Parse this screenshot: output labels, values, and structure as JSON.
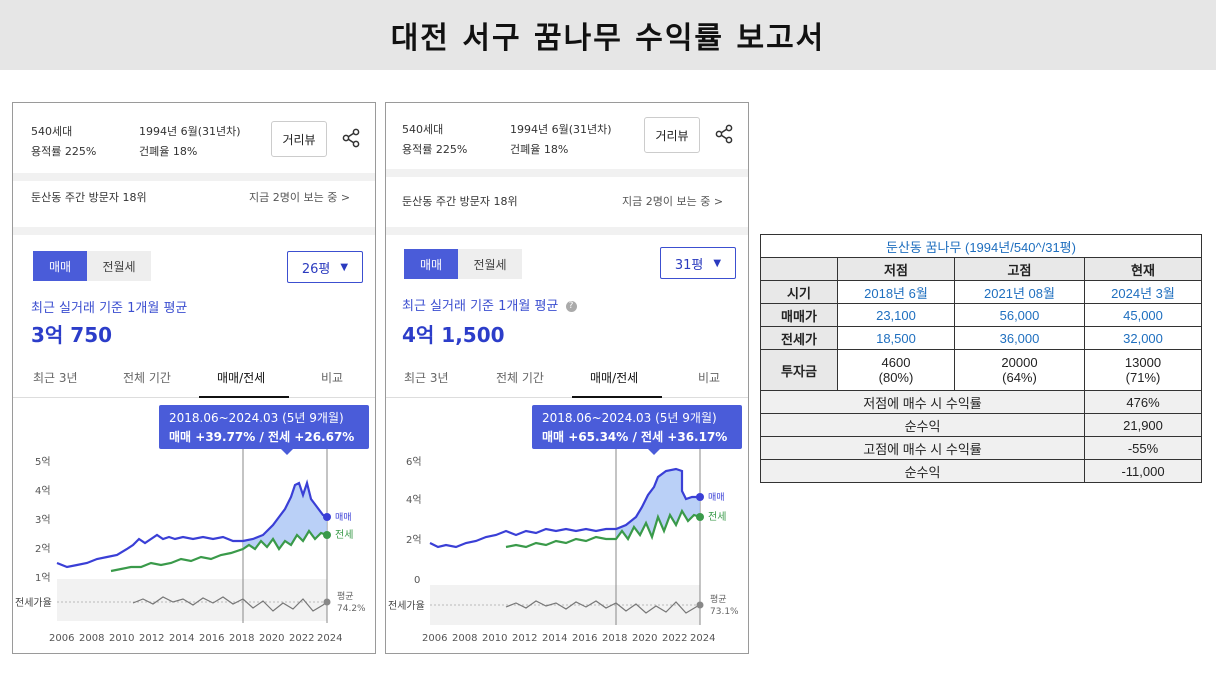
{
  "report_title": "대전 서구 꿈나무 수익률 보고서",
  "panels": {
    "p26": {
      "households": "540세대",
      "built": "1994년 6월(31년차)",
      "far": "용적률 225%",
      "bcr": "건폐율 18%",
      "road_view": "거리뷰",
      "rank": "둔산동 주간 방문자 18위",
      "viewing": "지금 2명이 보는 중 >",
      "toggle_sale": "매매",
      "toggle_rent": "전월세",
      "size": "26평",
      "avg_label": "최근 실거래 기준 1개월 평균",
      "avg_price": "3억 750",
      "tabs": [
        "최근 3년",
        "전체 기간",
        "매매/전세",
        "비교"
      ],
      "tooltip_period": "2018.06~2024.03 (5년 9개월)",
      "tooltip_change": "매매 +39.77%  /  전세 +26.67%",
      "y_ticks": [
        "5억",
        "4억",
        "3억",
        "2억",
        "1억"
      ],
      "x_ticks": [
        "2006",
        "2008",
        "2010",
        "2012",
        "2014",
        "2016",
        "2018",
        "2020",
        "2022",
        "2024"
      ],
      "legend_sale": "매매",
      "legend_jeonse": "전세",
      "ratio_label": "전세가율",
      "ratio_avg_label": "평균",
      "ratio_avg_value": "74.2%"
    },
    "p31": {
      "households": "540세대",
      "built": "1994년 6월(31년차)",
      "far": "용적률 225%",
      "bcr": "건폐율 18%",
      "road_view": "거리뷰",
      "rank": "둔산동 주간 방문자 18위",
      "viewing": "지금 2명이 보는 중 >",
      "toggle_sale": "매매",
      "toggle_rent": "전월세",
      "size": "31평",
      "avg_label": "최근 실거래 기준 1개월 평균",
      "avg_price": "4억 1,500",
      "tabs": [
        "최근 3년",
        "전체 기간",
        "매매/전세",
        "비교"
      ],
      "tooltip_period": "2018.06~2024.03 (5년 9개월)",
      "tooltip_change": "매매 +65.34%  /  전세 +36.17%",
      "y_ticks": [
        "6억",
        "4억",
        "2억",
        "0"
      ],
      "x_ticks": [
        "2006",
        "2008",
        "2010",
        "2012",
        "2014",
        "2016",
        "2018",
        "2020",
        "2022",
        "2024"
      ],
      "legend_sale": "매매",
      "legend_jeonse": "전세",
      "ratio_label": "전세가율",
      "ratio_avg_label": "평균",
      "ratio_avg_value": "73.1%"
    }
  },
  "table": {
    "header": "둔산동 꿈나무 (1994년/540^/31평)",
    "cols": [
      "저점",
      "고점",
      "현재"
    ],
    "rows": {
      "time": {
        "label": "시기",
        "values": [
          "2018년 6월",
          "2021년 08월",
          "2024년 3월"
        ]
      },
      "sale": {
        "label": "매매가",
        "values": [
          "23,100",
          "56,000",
          "45,000"
        ]
      },
      "jeonse": {
        "label": "전세가",
        "values": [
          "18,500",
          "36,000",
          "32,000"
        ]
      },
      "invest": {
        "label": "투자금",
        "values": [
          "4600",
          "20000",
          "13000"
        ],
        "pcts": [
          "(80%)",
          "(64%)",
          "(71%)"
        ]
      }
    },
    "summary": [
      {
        "label": "저점에 매수 시 수익률",
        "value": "476%"
      },
      {
        "label": "순수익",
        "value": "21,900"
      },
      {
        "label": "고점에 매수 시 수익률",
        "value": "-55%"
      },
      {
        "label": "순수익",
        "value": "-11,000"
      }
    ]
  },
  "colors": {
    "sale": "#3a3fd6",
    "jeonse": "#3a9a4a",
    "accent": "#4a5cd9",
    "fill": "#a9c4f5"
  }
}
